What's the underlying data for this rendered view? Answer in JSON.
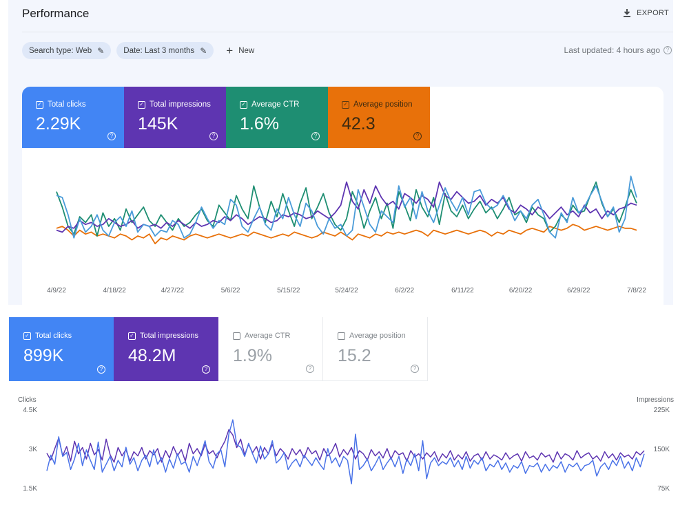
{
  "panel1": {
    "title": "Performance",
    "export_label": "EXPORT",
    "filters": [
      {
        "label": "Search type: Web"
      },
      {
        "label": "Date: Last 3 months"
      }
    ],
    "new_label": "New",
    "last_updated": "Last updated: 4 hours ago",
    "tiles": [
      {
        "label": "Total clicks",
        "value": "2.29K",
        "checked": true,
        "color": "#4285f4"
      },
      {
        "label": "Total impressions",
        "value": "145K",
        "checked": true,
        "color": "#5e35b1"
      },
      {
        "label": "Average CTR",
        "value": "1.6%",
        "checked": true,
        "color": "#1e8e72"
      },
      {
        "label": "Average position",
        "value": "42.3",
        "checked": true,
        "color": "#e8710a"
      }
    ]
  },
  "panel2": {
    "tiles": [
      {
        "label": "Total clicks",
        "value": "899K",
        "checked": true
      },
      {
        "label": "Total impressions",
        "value": "48.2M",
        "checked": true
      },
      {
        "label": "Average CTR",
        "value": "1.9%",
        "checked": false
      },
      {
        "label": "Average position",
        "value": "15.2",
        "checked": false
      }
    ],
    "left_axis_title": "Clicks",
    "right_axis_title": "Impressions"
  },
  "chart_data": [
    {
      "type": "line",
      "x_tick_labels": [
        "4/9/22",
        "4/18/22",
        "4/27/22",
        "5/6/22",
        "5/15/22",
        "5/24/22",
        "6/2/22",
        "6/11/22",
        "6/20/22",
        "6/29/22",
        "7/8/22"
      ],
      "series": [
        {
          "name": "Total clicks",
          "color": "#4a9bd9",
          "values": [
            0.72,
            0.7,
            0.52,
            0.28,
            0.48,
            0.34,
            0.4,
            0.52,
            0.36,
            0.3,
            0.44,
            0.5,
            0.4,
            0.56,
            0.34,
            0.42,
            0.4,
            0.3,
            0.36,
            0.34,
            0.46,
            0.42,
            0.28,
            0.32,
            0.44,
            0.6,
            0.48,
            0.38,
            0.46,
            0.42,
            0.68,
            0.62,
            0.4,
            0.34,
            0.48,
            0.6,
            0.42,
            0.36,
            0.58,
            0.48,
            0.7,
            0.52,
            0.4,
            0.64,
            0.56,
            0.4,
            0.32,
            0.48,
            0.38,
            0.42,
            0.3,
            0.36,
            0.78,
            0.6,
            0.42,
            0.34,
            0.56,
            0.5,
            0.44,
            0.82,
            0.6,
            0.7,
            0.48,
            0.76,
            0.56,
            0.44,
            0.62,
            0.8,
            0.66,
            0.56,
            0.7,
            0.52,
            0.76,
            0.78,
            0.64,
            0.58,
            0.62,
            0.72,
            0.6,
            0.46,
            0.56,
            0.48,
            0.62,
            0.68,
            0.52,
            0.34,
            0.28,
            0.54,
            0.44,
            0.7,
            0.54,
            0.6,
            0.72,
            0.82,
            0.66,
            0.5,
            0.6,
            0.34,
            0.48,
            0.92,
            0.7
          ]
        },
        {
          "name": "Total impressions",
          "color": "#5e35b1",
          "values": [
            0.36,
            0.34,
            0.4,
            0.38,
            0.46,
            0.42,
            0.44,
            0.4,
            0.42,
            0.48,
            0.44,
            0.4,
            0.42,
            0.46,
            0.38,
            0.42,
            0.4,
            0.42,
            0.38,
            0.44,
            0.4,
            0.46,
            0.42,
            0.38,
            0.44,
            0.4,
            0.42,
            0.46,
            0.44,
            0.5,
            0.46,
            0.52,
            0.48,
            0.42,
            0.46,
            0.5,
            0.48,
            0.44,
            0.46,
            0.52,
            0.5,
            0.54,
            0.52,
            0.48,
            0.5,
            0.56,
            0.52,
            0.48,
            0.54,
            0.62,
            0.86,
            0.66,
            0.58,
            0.78,
            0.64,
            0.82,
            0.7,
            0.62,
            0.66,
            0.58,
            0.74,
            0.7,
            0.64,
            0.72,
            0.68,
            0.6,
            0.86,
            0.72,
            0.68,
            0.76,
            0.7,
            0.64,
            0.66,
            0.72,
            0.62,
            0.68,
            0.64,
            0.7,
            0.58,
            0.54,
            0.62,
            0.58,
            0.52,
            0.6,
            0.56,
            0.48,
            0.54,
            0.6,
            0.52,
            0.56,
            0.5,
            0.62,
            0.54,
            0.58,
            0.48,
            0.56,
            0.52,
            0.58,
            0.6,
            0.64,
            0.62
          ]
        },
        {
          "name": "Average CTR",
          "color": "#1e8e72",
          "values": [
            0.76,
            0.6,
            0.4,
            0.32,
            0.5,
            0.44,
            0.52,
            0.3,
            0.54,
            0.4,
            0.48,
            0.36,
            0.58,
            0.44,
            0.52,
            0.6,
            0.46,
            0.4,
            0.52,
            0.44,
            0.36,
            0.48,
            0.4,
            0.44,
            0.52,
            0.58,
            0.46,
            0.4,
            0.62,
            0.54,
            0.46,
            0.72,
            0.58,
            0.48,
            0.82,
            0.6,
            0.44,
            0.66,
            0.5,
            0.74,
            0.56,
            0.4,
            0.64,
            0.8,
            0.48,
            0.6,
            0.74,
            0.54,
            0.42,
            0.36,
            0.48,
            0.76,
            0.62,
            0.38,
            0.56,
            0.7,
            0.48,
            0.64,
            0.38,
            0.76,
            0.62,
            0.46,
            0.78,
            0.6,
            0.5,
            0.7,
            0.42,
            0.74,
            0.56,
            0.5,
            0.62,
            0.48,
            0.58,
            0.66,
            0.54,
            0.6,
            0.48,
            0.58,
            0.7,
            0.52,
            0.56,
            0.44,
            0.6,
            0.52,
            0.48,
            0.34,
            0.4,
            0.52,
            0.46,
            0.62,
            0.54,
            0.56,
            0.72,
            0.86,
            0.64,
            0.5,
            0.58,
            0.44,
            0.6,
            0.78,
            0.64
          ]
        },
        {
          "name": "Average position",
          "color": "#e8710a",
          "values": [
            0.38,
            0.4,
            0.36,
            0.3,
            0.36,
            0.32,
            0.34,
            0.3,
            0.32,
            0.3,
            0.28,
            0.32,
            0.3,
            0.26,
            0.3,
            0.28,
            0.32,
            0.22,
            0.28,
            0.26,
            0.3,
            0.28,
            0.26,
            0.3,
            0.32,
            0.3,
            0.28,
            0.3,
            0.32,
            0.3,
            0.28,
            0.3,
            0.32,
            0.3,
            0.34,
            0.32,
            0.3,
            0.28,
            0.3,
            0.32,
            0.3,
            0.34,
            0.32,
            0.3,
            0.28,
            0.3,
            0.34,
            0.32,
            0.3,
            0.34,
            0.3,
            0.26,
            0.32,
            0.3,
            0.28,
            0.32,
            0.3,
            0.34,
            0.32,
            0.34,
            0.32,
            0.34,
            0.36,
            0.34,
            0.3,
            0.36,
            0.34,
            0.32,
            0.34,
            0.36,
            0.34,
            0.32,
            0.34,
            0.36,
            0.34,
            0.3,
            0.34,
            0.32,
            0.36,
            0.34,
            0.32,
            0.36,
            0.38,
            0.36,
            0.34,
            0.4,
            0.38,
            0.36,
            0.38,
            0.42,
            0.4,
            0.36,
            0.38,
            0.4,
            0.38,
            0.36,
            0.38,
            0.4,
            0.38,
            0.38,
            0.36
          ]
        }
      ]
    },
    {
      "type": "line",
      "left_axis": {
        "title": "Clicks",
        "ticks": [
          "4.5K",
          "3K",
          "1.5K"
        ],
        "ylim": [
          1500,
          4500
        ]
      },
      "right_axis": {
        "title": "Impressions",
        "ticks": [
          "225K",
          "150K",
          "75K"
        ],
        "ylim": [
          75000,
          225000
        ]
      },
      "series": [
        {
          "name": "Total clicks",
          "color": "#4a73e8",
          "values": [
            2150,
            2750,
            2400,
            3450,
            2700,
            2850,
            2200,
            2600,
            3200,
            2350,
            2950,
            2550,
            2200,
            3250,
            2100,
            2400,
            2700,
            2150,
            2550,
            2300,
            3050,
            2400,
            2650,
            2150,
            2550,
            2750,
            2300,
            2950,
            2400,
            2650,
            2100,
            2600,
            2250,
            2800,
            2400,
            2500,
            2100,
            2700,
            2350,
            2800,
            3300,
            2500,
            2250,
            2800,
            2950,
            2300,
            3550,
            4100,
            3150,
            3050,
            2700,
            3200,
            2800,
            2450,
            3100,
            2600,
            2800,
            3300,
            2450,
            2600,
            2850,
            2200,
            2450,
            2600,
            2300,
            2750,
            2550,
            2350,
            2650,
            2400,
            2200,
            3000,
            2450,
            2650,
            2300,
            2700,
            2550,
            1650,
            3550,
            2200,
            2350,
            2600,
            2150,
            2400,
            2700,
            2200,
            2450,
            2650,
            2300,
            2700,
            2050,
            2600,
            2350,
            2800,
            2150,
            3300,
            1850,
            2450,
            2650,
            2350,
            2500,
            2400,
            2650,
            2300,
            2550,
            2200,
            2700,
            2250,
            2550,
            2400,
            2650,
            2150,
            2400,
            2300,
            2550,
            2200,
            2450,
            2100,
            2350,
            2250,
            2500,
            2050,
            2350,
            2300,
            2450,
            2100,
            2400,
            2150,
            2350,
            2250,
            2500,
            2100,
            2400,
            2300,
            2450,
            2150,
            2350,
            2400,
            2550,
            1950,
            2300,
            2450,
            2200,
            2550,
            2350,
            2700,
            2250,
            2500,
            2150,
            2650,
            2300,
            2800
          ]
        },
        {
          "name": "Total impressions",
          "color": "#5e35b1",
          "values": [
            141000,
            128000,
            150000,
            170000,
            136000,
            154000,
            126000,
            164000,
            140000,
            152000,
            130000,
            160000,
            138000,
            148000,
            128000,
            168000,
            138000,
            124000,
            152000,
            136000,
            148000,
            126000,
            144000,
            136000,
            152000,
            130000,
            146000,
            138000,
            150000,
            124000,
            146000,
            132000,
            154000,
            136000,
            148000,
            126000,
            160000,
            140000,
            150000,
            136000,
            158000,
            140000,
            146000,
            132000,
            150000,
            164000,
            186000,
            176000,
            152000,
            168000,
            138000,
            158000,
            142000,
            154000,
            130000,
            152000,
            140000,
            158000,
            136000,
            150000,
            142000,
            130000,
            150000,
            138000,
            148000,
            132000,
            152000,
            140000,
            146000,
            128000,
            150000,
            136000,
            144000,
            160000,
            134000,
            148000,
            138000,
            152000,
            130000,
            146000,
            140000,
            128000,
            148000,
            136000,
            144000,
            132000,
            150000,
            130000,
            146000,
            138000,
            142000,
            126000,
            146000,
            134000,
            140000,
            130000,
            142000,
            134000,
            144000,
            126000,
            140000,
            132000,
            146000,
            128000,
            138000,
            130000,
            144000,
            126000,
            136000,
            140000,
            128000,
            144000,
            130000,
            138000,
            134000,
            128000,
            142000,
            130000,
            136000,
            140000,
            126000,
            144000,
            132000,
            136000,
            128000,
            142000,
            134000,
            138000,
            124000,
            144000,
            130000,
            140000,
            136000,
            128000,
            146000,
            132000,
            138000,
            142000,
            130000,
            136000,
            126000,
            144000,
            132000,
            140000,
            128000,
            142000,
            134000,
            138000,
            130000,
            144000,
            138000,
            146000
          ]
        }
      ]
    }
  ]
}
